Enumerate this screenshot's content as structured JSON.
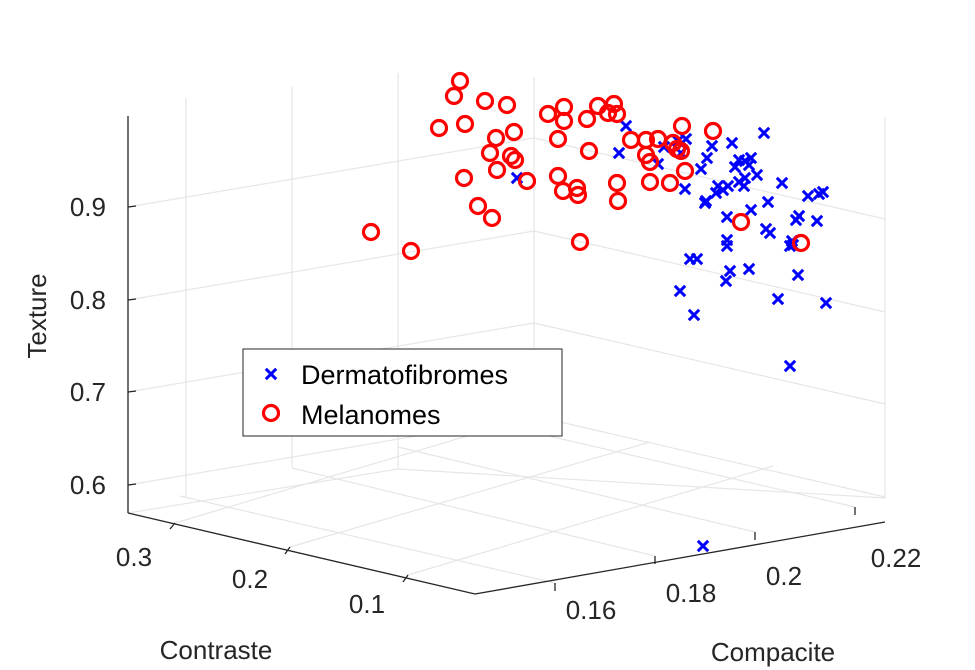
{
  "chart_data": {
    "type": "scatter",
    "projection": "3d",
    "xlabel": "Compacite",
    "ylabel": "Contraste",
    "zlabel": "Texture",
    "xlim": [
      0.15,
      0.225
    ],
    "ylim": [
      0.05,
      0.33
    ],
    "zlim": [
      0.57,
      1.0
    ],
    "x_ticks": [
      "0.16",
      "0.18",
      "0.2",
      "0.22"
    ],
    "y_ticks": [
      "0.1",
      "0.2",
      "0.3"
    ],
    "z_ticks": [
      "0.6",
      "0.7",
      "0.8",
      "0.9"
    ],
    "grid": true,
    "legend_placement": "center-left",
    "series": [
      {
        "name": "Dermatofibromes",
        "marker": "x",
        "color": "#0000ff",
        "screen_points": [
          [
            626,
            126
          ],
          [
            619,
            153
          ],
          [
            658,
            164
          ],
          [
            664,
            147
          ],
          [
            678,
            141
          ],
          [
            686,
            139
          ],
          [
            681,
            153
          ],
          [
            701,
            169
          ],
          [
            707,
            158
          ],
          [
            712,
            146
          ],
          [
            732,
            143
          ],
          [
            764,
            133
          ],
          [
            735,
            167
          ],
          [
            739,
            160
          ],
          [
            745,
            161
          ],
          [
            751,
            158
          ],
          [
            749,
            165
          ],
          [
            757,
            175
          ],
          [
            782,
            183
          ],
          [
            739,
            182
          ],
          [
            745,
            178
          ],
          [
            744,
            186
          ],
          [
            728,
            186
          ],
          [
            723,
            190
          ],
          [
            718,
            186
          ],
          [
            716,
            193
          ],
          [
            706,
            201
          ],
          [
            705,
            203
          ],
          [
            685,
            189
          ],
          [
            768,
            202
          ],
          [
            751,
            210
          ],
          [
            727,
            217
          ],
          [
            823,
            192
          ],
          [
            819,
            194
          ],
          [
            808,
            196
          ],
          [
            817,
            221
          ],
          [
            796,
            220
          ],
          [
            799,
            216
          ],
          [
            770,
            233
          ],
          [
            766,
            229
          ],
          [
            792,
            241
          ],
          [
            790,
            246
          ],
          [
            793,
            245
          ],
          [
            727,
            240
          ],
          [
            727,
            246
          ],
          [
            697,
            259
          ],
          [
            690,
            259
          ],
          [
            730,
            271
          ],
          [
            726,
            281
          ],
          [
            749,
            269
          ],
          [
            798,
            275
          ],
          [
            680,
            291
          ],
          [
            694,
            315
          ],
          [
            778,
            299
          ],
          [
            826,
            303
          ],
          [
            790,
            366
          ],
          [
            703,
            546
          ],
          [
            517,
            178
          ]
        ]
      },
      {
        "name": "Melanomes",
        "marker": "o",
        "color": "#ff0000",
        "screen_points": [
          [
            460,
            81
          ],
          [
            454,
            96
          ],
          [
            485,
            101
          ],
          [
            507,
            105
          ],
          [
            465,
            124
          ],
          [
            439,
            128
          ],
          [
            514,
            132
          ],
          [
            496,
            138
          ],
          [
            490,
            153
          ],
          [
            511,
            156
          ],
          [
            515,
            160
          ],
          [
            497,
            170
          ],
          [
            527,
            181
          ],
          [
            464,
            178
          ],
          [
            478,
            206
          ],
          [
            492,
            218
          ],
          [
            371,
            232
          ],
          [
            411,
            251
          ],
          [
            548,
            114
          ],
          [
            564,
            107
          ],
          [
            564,
            121
          ],
          [
            587,
            119
          ],
          [
            598,
            106
          ],
          [
            614,
            104
          ],
          [
            608,
            113
          ],
          [
            617,
            114
          ],
          [
            558,
            139
          ],
          [
            589,
            151
          ],
          [
            631,
            140
          ],
          [
            646,
            140
          ],
          [
            658,
            139
          ],
          [
            673,
            143
          ],
          [
            682,
            126
          ],
          [
            713,
            131
          ],
          [
            646,
            155
          ],
          [
            650,
            162
          ],
          [
            677,
            149
          ],
          [
            681,
            151
          ],
          [
            685,
            171
          ],
          [
            670,
            183
          ],
          [
            650,
            182
          ],
          [
            617,
            183
          ],
          [
            618,
            201
          ],
          [
            577,
            188
          ],
          [
            578,
            195
          ],
          [
            563,
            191
          ],
          [
            558,
            176
          ],
          [
            580,
            242
          ],
          [
            741,
            222
          ],
          [
            801,
            243
          ]
        ]
      }
    ]
  }
}
